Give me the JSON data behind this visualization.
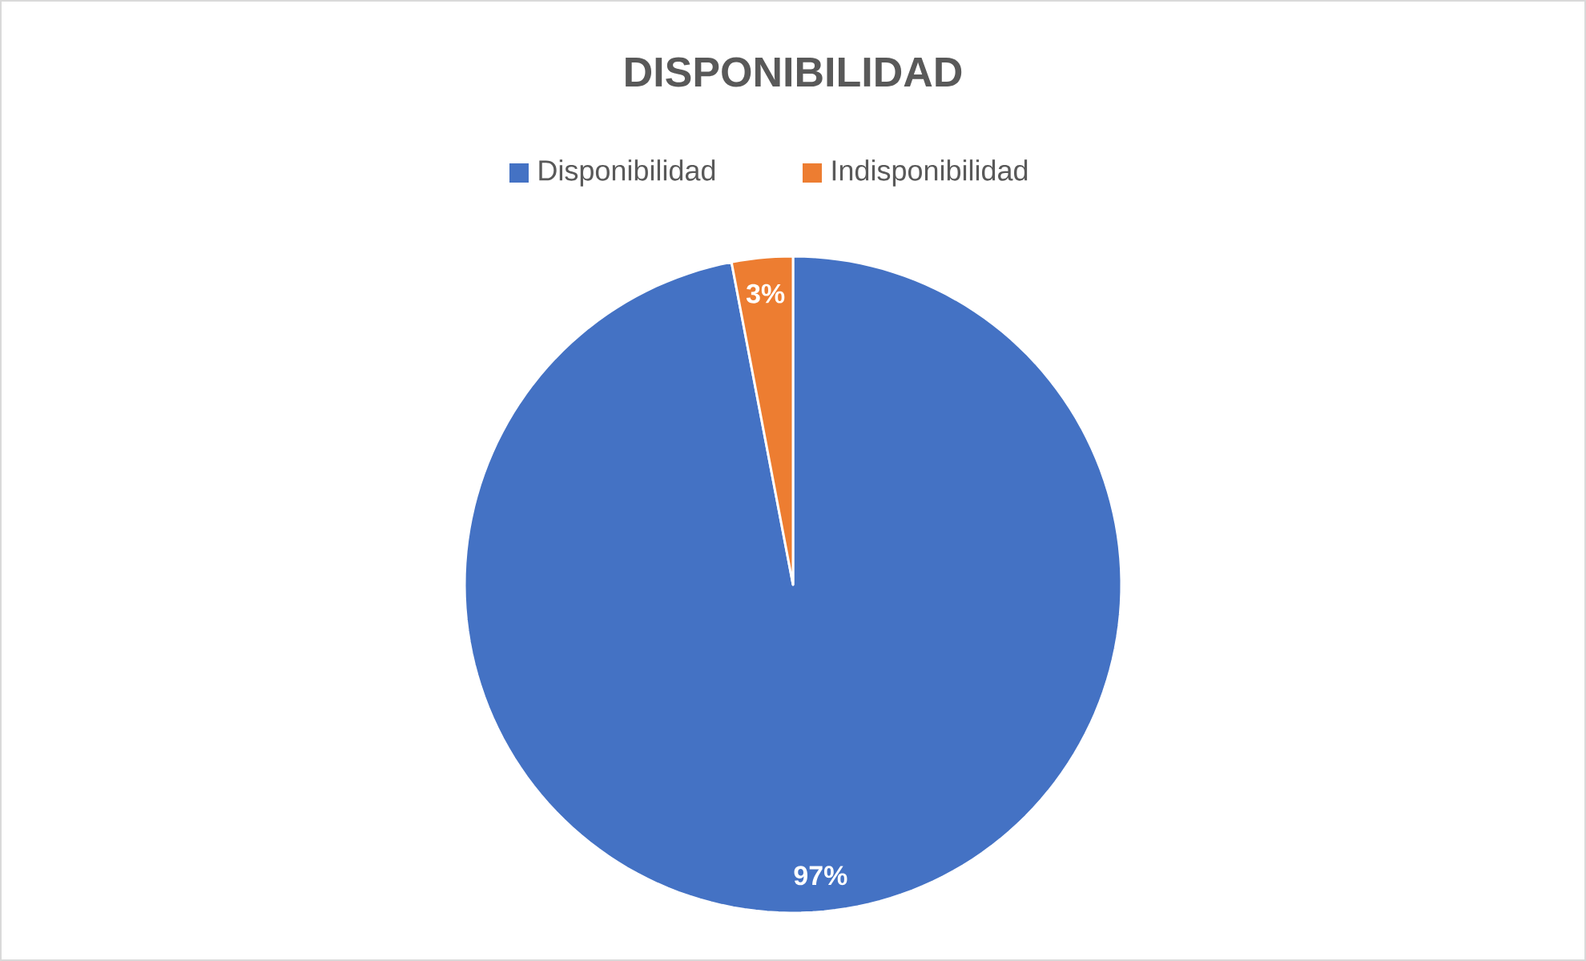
{
  "chart_data": {
    "type": "pie",
    "title": "DISPONIBILIDAD",
    "categories": [
      "Disponibilidad",
      "Indisponibilidad"
    ],
    "values": [
      97,
      3
    ],
    "colors": [
      "#4472c4",
      "#ed7d31"
    ],
    "value_labels": [
      "97%",
      "3%"
    ],
    "legend": "top"
  }
}
